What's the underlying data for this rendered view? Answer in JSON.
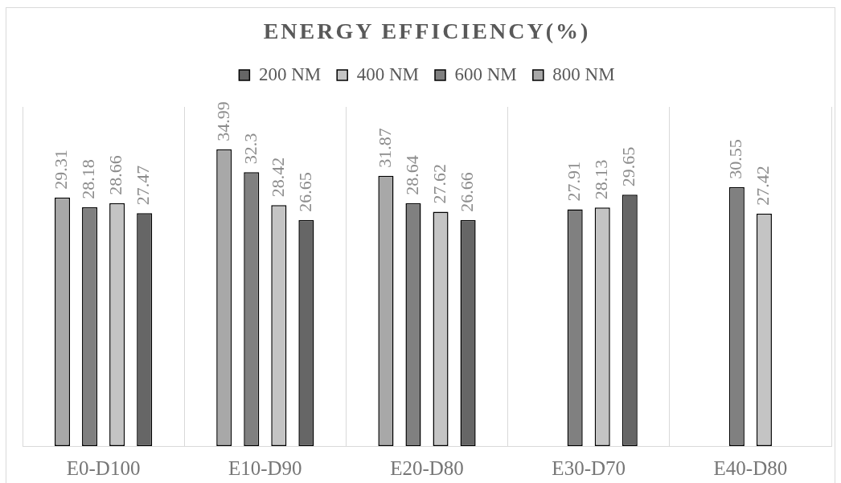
{
  "chart_data": {
    "type": "bar",
    "title": "ENERGY EFFICIENCY(%)",
    "categories": [
      "E0-D100",
      "E10-D90",
      "E20-D80",
      "E30-D70",
      "E40-D80"
    ],
    "series": [
      {
        "name": "200 NM",
        "color": "#666666",
        "values": [
          27.47,
          26.65,
          26.66,
          29.65,
          null
        ]
      },
      {
        "name": "400 NM",
        "color": "#c4c4c4",
        "values": [
          28.66,
          28.42,
          27.62,
          28.13,
          27.42
        ]
      },
      {
        "name": "600 NM",
        "color": "#808080",
        "values": [
          28.18,
          32.3,
          28.64,
          27.91,
          30.55
        ]
      },
      {
        "name": "800 NM",
        "color": "#a8a8a8",
        "values": [
          29.31,
          34.99,
          31.87,
          null,
          null
        ]
      }
    ],
    "ylim": [
      0,
      40
    ],
    "grid": "x",
    "legend": "top",
    "data_labels": true,
    "tick_labels": "x"
  }
}
